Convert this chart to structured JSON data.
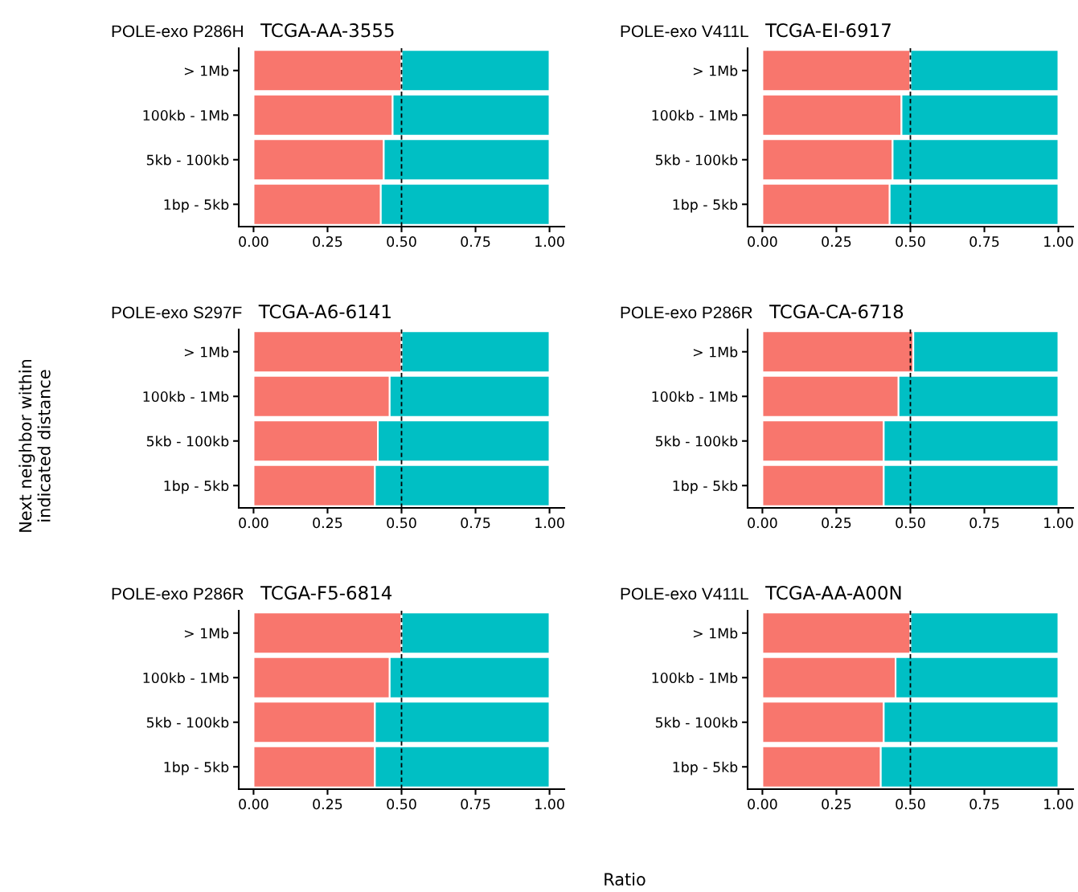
{
  "chart_data": [
    {
      "type": "bar",
      "orientation": "horizontal",
      "stacked": true,
      "title": "POLE-exo P286H",
      "subtitle": "TCGA-AA-3555",
      "categories": [
        "> 1Mb",
        "100kb - 1Mb",
        "5kb - 100kb",
        "1bp - 5kb"
      ],
      "series": [
        {
          "color": "#f8766d",
          "values": [
            0.5,
            0.47,
            0.44,
            0.43
          ]
        },
        {
          "color": "#00bfc4",
          "values": [
            0.5,
            0.53,
            0.56,
            0.57
          ]
        }
      ],
      "xlim": [
        -0.05,
        1.05
      ],
      "xticks": [
        {
          "value": 0,
          "label": "0.00"
        },
        {
          "value": 0.25,
          "label": "0.25"
        },
        {
          "value": 0.5,
          "label": "0.50"
        },
        {
          "value": 0.75,
          "label": "0.75"
        },
        {
          "value": 1,
          "label": "1.00"
        }
      ],
      "ref_lines": [
        {
          "axis": "x",
          "value": 0.5,
          "color": "#000000",
          "line_style": "dashed"
        }
      ],
      "grid": false,
      "legend": false
    },
    {
      "type": "bar",
      "orientation": "horizontal",
      "stacked": true,
      "title": "POLE-exo V411L",
      "subtitle": "TCGA-EI-6917",
      "categories": [
        "> 1Mb",
        "100kb - 1Mb",
        "5kb - 100kb",
        "1bp - 5kb"
      ],
      "series": [
        {
          "color": "#f8766d",
          "values": [
            0.5,
            0.47,
            0.44,
            0.43
          ]
        },
        {
          "color": "#00bfc4",
          "values": [
            0.5,
            0.53,
            0.56,
            0.57
          ]
        }
      ],
      "xlim": [
        -0.05,
        1.05
      ],
      "xticks": [
        {
          "value": 0,
          "label": "0.00"
        },
        {
          "value": 0.25,
          "label": "0.25"
        },
        {
          "value": 0.5,
          "label": "0.50"
        },
        {
          "value": 0.75,
          "label": "0.75"
        },
        {
          "value": 1,
          "label": "1.00"
        }
      ],
      "ref_lines": [
        {
          "axis": "x",
          "value": 0.5,
          "color": "#000000",
          "line_style": "dashed"
        }
      ],
      "grid": false,
      "legend": false
    },
    {
      "type": "bar",
      "orientation": "horizontal",
      "stacked": true,
      "title": "POLE-exo S297F",
      "subtitle": "TCGA-A6-6141",
      "ylabel": "Next neighbor within\nindicated distance",
      "categories": [
        "> 1Mb",
        "100kb - 1Mb",
        "5kb - 100kb",
        "1bp - 5kb"
      ],
      "series": [
        {
          "color": "#f8766d",
          "values": [
            0.5,
            0.46,
            0.42,
            0.41
          ]
        },
        {
          "color": "#00bfc4",
          "values": [
            0.5,
            0.54,
            0.58,
            0.59
          ]
        }
      ],
      "xlim": [
        -0.05,
        1.05
      ],
      "xticks": [
        {
          "value": 0,
          "label": "0.00"
        },
        {
          "value": 0.25,
          "label": "0.25"
        },
        {
          "value": 0.5,
          "label": "0.50"
        },
        {
          "value": 0.75,
          "label": "0.75"
        },
        {
          "value": 1,
          "label": "1.00"
        }
      ],
      "ref_lines": [
        {
          "axis": "x",
          "value": 0.5,
          "color": "#000000",
          "line_style": "dashed"
        }
      ],
      "grid": false,
      "legend": false
    },
    {
      "type": "bar",
      "orientation": "horizontal",
      "stacked": true,
      "title": "POLE-exo P286R",
      "subtitle": "TCGA-CA-6718",
      "categories": [
        "> 1Mb",
        "100kb - 1Mb",
        "5kb - 100kb",
        "1bp - 5kb"
      ],
      "series": [
        {
          "color": "#f8766d",
          "values": [
            0.51,
            0.46,
            0.41,
            0.41
          ]
        },
        {
          "color": "#00bfc4",
          "values": [
            0.49,
            0.54,
            0.59,
            0.59
          ]
        }
      ],
      "xlim": [
        -0.05,
        1.05
      ],
      "xticks": [
        {
          "value": 0,
          "label": "0.00"
        },
        {
          "value": 0.25,
          "label": "0.25"
        },
        {
          "value": 0.5,
          "label": "0.50"
        },
        {
          "value": 0.75,
          "label": "0.75"
        },
        {
          "value": 1,
          "label": "1.00"
        }
      ],
      "ref_lines": [
        {
          "axis": "x",
          "value": 0.5,
          "color": "#000000",
          "line_style": "dashed"
        }
      ],
      "grid": false,
      "legend": false
    },
    {
      "type": "bar",
      "orientation": "horizontal",
      "stacked": true,
      "title": "POLE-exo P286R",
      "subtitle": "TCGA-F5-6814",
      "xlabel": "Ratio",
      "categories": [
        "> 1Mb",
        "100kb - 1Mb",
        "5kb - 100kb",
        "1bp - 5kb"
      ],
      "series": [
        {
          "color": "#f8766d",
          "values": [
            0.5,
            0.46,
            0.41,
            0.41
          ]
        },
        {
          "color": "#00bfc4",
          "values": [
            0.5,
            0.54,
            0.59,
            0.59
          ]
        }
      ],
      "xlim": [
        -0.05,
        1.05
      ],
      "xticks": [
        {
          "value": 0,
          "label": "0.00"
        },
        {
          "value": 0.25,
          "label": "0.25"
        },
        {
          "value": 0.5,
          "label": "0.50"
        },
        {
          "value": 0.75,
          "label": "0.75"
        },
        {
          "value": 1,
          "label": "1.00"
        }
      ],
      "ref_lines": [
        {
          "axis": "x",
          "value": 0.5,
          "color": "#000000",
          "line_style": "dashed"
        }
      ],
      "grid": false,
      "legend": false
    },
    {
      "type": "bar",
      "orientation": "horizontal",
      "stacked": true,
      "title": "POLE-exo V411L",
      "subtitle": "TCGA-AA-A00N",
      "categories": [
        "> 1Mb",
        "100kb - 1Mb",
        "5kb - 100kb",
        "1bp - 5kb"
      ],
      "series": [
        {
          "color": "#f8766d",
          "values": [
            0.5,
            0.45,
            0.41,
            0.4
          ]
        },
        {
          "color": "#00bfc4",
          "values": [
            0.5,
            0.55,
            0.59,
            0.6
          ]
        }
      ],
      "xlim": [
        -0.05,
        1.05
      ],
      "xticks": [
        {
          "value": 0,
          "label": "0.00"
        },
        {
          "value": 0.25,
          "label": "0.25"
        },
        {
          "value": 0.5,
          "label": "0.50"
        },
        {
          "value": 0.75,
          "label": "0.75"
        },
        {
          "value": 1,
          "label": "1.00"
        }
      ],
      "ref_lines": [
        {
          "axis": "x",
          "value": 0.5,
          "color": "#000000",
          "line_style": "dashed"
        }
      ],
      "grid": false,
      "legend": false
    }
  ]
}
